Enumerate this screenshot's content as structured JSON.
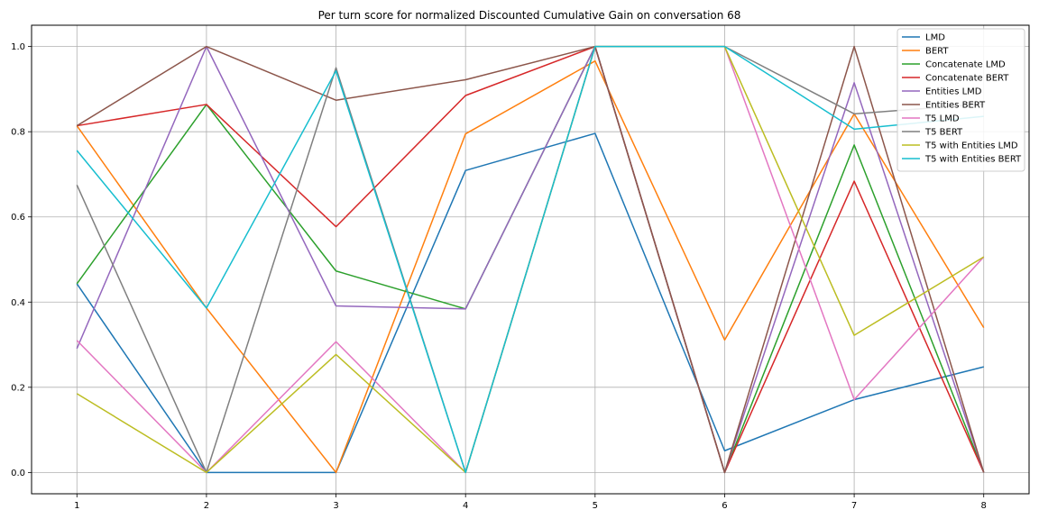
{
  "chart_data": {
    "type": "line",
    "title": "Per turn score for normalized Discounted Cumulative Gain on conversation 68",
    "xlabel": "",
    "ylabel": "",
    "x": [
      1,
      2,
      3,
      4,
      5,
      6,
      7,
      8
    ],
    "xticks": [
      "1",
      "2",
      "3",
      "4",
      "5",
      "6",
      "7",
      "8"
    ],
    "yticks": [
      "0.0",
      "0.2",
      "0.4",
      "0.6",
      "0.8",
      "1.0"
    ],
    "xlim": [
      0.65,
      8.35
    ],
    "ylim": [
      -0.05,
      1.05
    ],
    "grid": true,
    "legend_position": "top-right",
    "series": [
      {
        "name": "LMD",
        "color": "#1f77b4",
        "values": [
          0.443,
          0.0,
          0.0,
          0.709,
          0.796,
          0.051,
          0.171,
          0.248
        ]
      },
      {
        "name": "BERT",
        "color": "#ff7f0e",
        "values": [
          0.814,
          0.386,
          0.0,
          0.795,
          0.966,
          0.311,
          0.842,
          0.34
        ]
      },
      {
        "name": "Concatenate LMD",
        "color": "#2ca02c",
        "values": [
          0.443,
          0.864,
          0.473,
          0.384,
          1.0,
          0.0,
          0.769,
          0.0
        ]
      },
      {
        "name": "Concatenate BERT",
        "color": "#d62728",
        "values": [
          0.814,
          0.864,
          0.577,
          0.885,
          1.0,
          0.0,
          0.684,
          0.0
        ]
      },
      {
        "name": "Entities LMD",
        "color": "#9467bd",
        "values": [
          0.291,
          1.0,
          0.391,
          0.384,
          1.0,
          0.0,
          0.915,
          0.0
        ]
      },
      {
        "name": "Entities BERT",
        "color": "#8c564b",
        "values": [
          0.814,
          1.0,
          0.874,
          0.922,
          1.0,
          0.0,
          1.0,
          0.0
        ]
      },
      {
        "name": "T5 LMD",
        "color": "#e377c2",
        "values": [
          0.31,
          0.0,
          0.307,
          0.0,
          1.0,
          1.0,
          0.171,
          0.506
        ]
      },
      {
        "name": "T5 BERT",
        "color": "#7f7f7f",
        "values": [
          0.675,
          0.0,
          0.95,
          0.0,
          1.0,
          1.0,
          0.842,
          0.865
        ]
      },
      {
        "name": "T5 with Entities LMD",
        "color": "#bcbd22",
        "values": [
          0.185,
          0.0,
          0.277,
          0.0,
          1.0,
          1.0,
          0.322,
          0.506
        ]
      },
      {
        "name": "T5 with Entities BERT",
        "color": "#17becf",
        "values": [
          0.756,
          0.386,
          0.943,
          0.0,
          1.0,
          1.0,
          0.806,
          0.836
        ]
      }
    ]
  }
}
